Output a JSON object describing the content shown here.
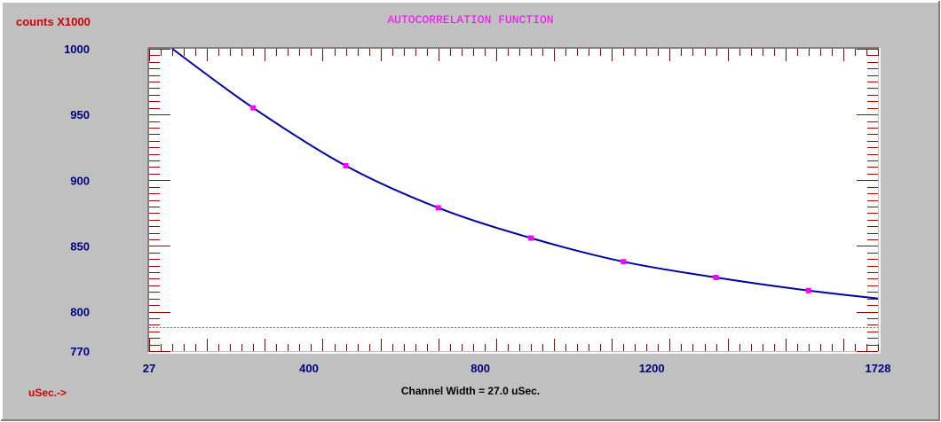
{
  "window": {
    "title": "AUTOCORRELATION FUNCTION",
    "y_unit_label": "counts X1000",
    "x_unit_label": "uSec.->",
    "footer": "Channel Width = 27.0 uSec."
  },
  "colors": {
    "background": "#c0c0c0",
    "plot_area": "#ffffff",
    "axis_ticks": "#a00000",
    "curve": "#0000a0",
    "markers": "#ff00ff",
    "baseline": "#00c000",
    "title": "#ff00ff",
    "unit_labels": "#d00000",
    "tick_labels": "#000080"
  },
  "chart_data": {
    "type": "line",
    "title": "AUTOCORRELATION FUNCTION",
    "xlabel": "uSec.->",
    "ylabel": "counts X1000",
    "xlim": [
      27,
      1728
    ],
    "ylim": [
      770,
      1000
    ],
    "x_tick_labels": [
      "27",
      "400",
      "800",
      "1200",
      "1728"
    ],
    "y_tick_labels": [
      "1000",
      "950",
      "900",
      "850",
      "800",
      "770"
    ],
    "series": [
      {
        "x": [
          81,
          270,
          486,
          702,
          918,
          1134,
          1350,
          1566,
          1728
        ],
        "y": [
          1000,
          955,
          911,
          879,
          856,
          838,
          826,
          816,
          810
        ]
      }
    ],
    "markers": {
      "x": [
        270,
        486,
        702,
        918,
        1134,
        1350,
        1566
      ],
      "y": [
        955,
        911,
        879,
        856,
        838,
        826,
        816
      ]
    },
    "baseline_y": 788,
    "grid": false,
    "legend": "none"
  }
}
